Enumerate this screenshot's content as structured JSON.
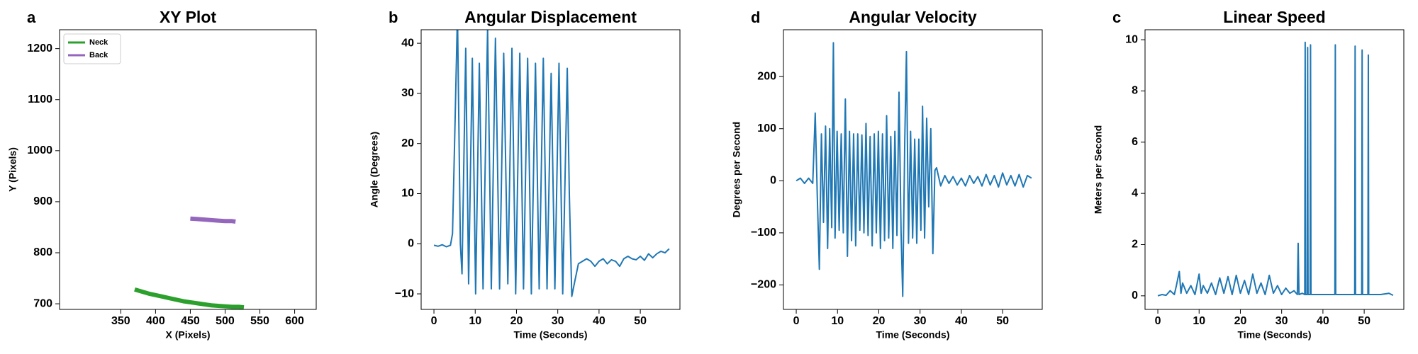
{
  "chart_data": [
    {
      "type": "line",
      "panel_label": "a",
      "title": "XY Plot",
      "xlabel": "X (Pixels)",
      "ylabel": "Y (Pixels)",
      "xlim": [
        262,
        631
      ],
      "ylim": [
        689,
        1237
      ],
      "xticks": [
        350,
        400,
        450,
        500,
        550,
        600
      ],
      "yticks": [
        700,
        800,
        900,
        1000,
        1100,
        1200
      ],
      "legend": "upper left",
      "line_width": 6,
      "series": [
        {
          "name": "Neck",
          "color": "#2ca02c",
          "x": [
            370,
            380,
            390,
            400,
            410,
            420,
            430,
            440,
            450,
            460,
            470,
            480,
            490,
            500,
            510,
            520,
            527
          ],
          "values": [
            728,
            724,
            720,
            717,
            714,
            711,
            708,
            705,
            703,
            701,
            699,
            697,
            696,
            695,
            694,
            694,
            693
          ]
        },
        {
          "name": "Back",
          "color": "#9467bd",
          "x": [
            450,
            460,
            470,
            480,
            490,
            500,
            510,
            515
          ],
          "values": [
            867,
            866,
            865,
            864,
            863,
            862,
            862,
            861
          ]
        }
      ]
    },
    {
      "type": "line",
      "panel_label": "b",
      "title": "Angular Displacement",
      "xlabel": "Time (Seconds)",
      "ylabel": "Angle (Degrees)",
      "xlim": [
        -3.1,
        59.6
      ],
      "ylim": [
        -13.1,
        42.7
      ],
      "xticks": [
        0,
        10,
        20,
        30,
        40,
        50
      ],
      "yticks": [
        {
          "value": -10,
          "label": "−10"
        },
        0,
        10,
        20,
        30,
        40
      ],
      "line_width": 2,
      "series": [
        {
          "color": "#1f77b4",
          "x": [
            0,
            1,
            2,
            3,
            4,
            4.5,
            5.0,
            5.7,
            6.4,
            6.8,
            7.7,
            8.4,
            9.3,
            10.1,
            11.0,
            11.9,
            13.0,
            13.9,
            14.9,
            15.9,
            16.9,
            17.9,
            18.9,
            19.8,
            20.8,
            21.7,
            22.7,
            23.6,
            24.6,
            25.5,
            26.5,
            27.4,
            28.4,
            29.3,
            30.3,
            31.2,
            32.3,
            32.8,
            33.4,
            34.0,
            35,
            36,
            37,
            38,
            39,
            40,
            41,
            42,
            43,
            44,
            45,
            46,
            47,
            48,
            49,
            50,
            51,
            52,
            53,
            54,
            55,
            56,
            57
          ],
          "values": [
            -0.3,
            -0.5,
            -0.2,
            -0.6,
            -0.3,
            2,
            20,
            46,
            0,
            -6,
            39,
            -8,
            37,
            -10,
            36,
            -9,
            43,
            -9,
            41,
            -9,
            38,
            -8,
            39,
            -10,
            38,
            -9,
            37,
            -10,
            36,
            -9,
            37,
            -9,
            34,
            -9,
            36,
            -10,
            35,
            10,
            -10.5,
            -8,
            -4,
            -3.5,
            -3,
            -3.5,
            -4.5,
            -3.5,
            -3,
            -4,
            -3.2,
            -3.5,
            -4.5,
            -3,
            -2.5,
            -3,
            -3.2,
            -2.5,
            -3.3,
            -2,
            -2.8,
            -2,
            -1.5,
            -1.8,
            -1
          ]
        }
      ]
    },
    {
      "type": "line",
      "panel_label": "d",
      "title": "Angular Velocity",
      "xlabel": "Time (Seconds)",
      "ylabel": "Degrees per Second",
      "xlim": [
        -3.1,
        59.6
      ],
      "ylim": [
        -247,
        290
      ],
      "xticks": [
        0,
        10,
        20,
        30,
        40,
        50
      ],
      "yticks": [
        {
          "value": -200,
          "label": "−200"
        },
        {
          "value": -100,
          "label": "−100"
        },
        0,
        100,
        200
      ],
      "line_width": 2,
      "series": [
        {
          "color": "#1f77b4",
          "x": [
            0,
            1,
            2,
            3,
            4,
            4.6,
            5.1,
            5.6,
            6.1,
            6.6,
            7.1,
            7.6,
            8.1,
            8.6,
            9.0,
            9.4,
            9.9,
            10.4,
            10.9,
            11.4,
            11.9,
            12.4,
            12.9,
            13.4,
            13.9,
            14.4,
            14.9,
            15.4,
            15.9,
            16.4,
            16.9,
            17.4,
            17.9,
            18.4,
            18.9,
            19.4,
            19.9,
            20.4,
            20.9,
            21.4,
            21.9,
            22.4,
            22.9,
            23.4,
            23.9,
            24.4,
            24.9,
            25.4,
            25.8,
            26.3,
            26.7,
            27.2,
            27.7,
            28.2,
            28.7,
            29.2,
            29.7,
            30.2,
            30.6,
            31.1,
            31.6,
            32.1,
            32.6,
            33.1,
            33.6,
            34,
            35,
            36,
            37,
            38,
            39,
            40,
            41,
            42,
            43,
            44,
            45,
            46,
            47,
            48,
            49,
            50,
            51,
            52,
            53,
            54,
            55,
            56,
            57
          ],
          "values": [
            0,
            5,
            -5,
            5,
            -5,
            130,
            -30,
            -170,
            90,
            -80,
            105,
            -130,
            100,
            -90,
            265,
            -110,
            95,
            -95,
            90,
            -100,
            157,
            -145,
            95,
            -115,
            90,
            -125,
            90,
            -95,
            88,
            -100,
            110,
            -105,
            85,
            -125,
            90,
            -100,
            95,
            -130,
            90,
            -115,
            125,
            -110,
            85,
            -130,
            95,
            -105,
            170,
            -100,
            -222,
            80,
            248,
            -120,
            95,
            -110,
            80,
            -120,
            80,
            -95,
            143,
            -110,
            120,
            -50,
            100,
            -140,
            20,
            25,
            -10,
            10,
            -5,
            8,
            -8,
            5,
            -10,
            10,
            -5,
            8,
            -10,
            12,
            -8,
            10,
            -12,
            15,
            -8,
            10,
            -10,
            12,
            -12,
            10,
            5
          ]
        }
      ]
    },
    {
      "type": "line",
      "panel_label": "c",
      "title": "Linear Speed",
      "xlabel": "Time (Seconds)",
      "ylabel": "Meters per Second",
      "xlim": [
        -3.1,
        59.6
      ],
      "ylim": [
        -0.53,
        10.39
      ],
      "xticks": [
        0,
        10,
        20,
        30,
        40,
        50
      ],
      "yticks": [
        0,
        2,
        4,
        6,
        8,
        10
      ],
      "line_width": 2,
      "series": [
        {
          "color": "#1f77b4",
          "x": [
            0,
            1,
            2,
            3,
            4,
            4.5,
            5.2,
            5.6,
            6,
            7,
            8,
            9,
            10,
            10.5,
            11,
            12,
            13,
            14,
            15,
            16,
            17,
            18,
            19,
            20,
            21,
            22,
            23,
            24,
            25,
            26,
            27,
            28,
            29,
            30,
            31,
            32,
            33,
            33.8,
            34,
            34.2,
            35,
            35.6,
            35.7,
            35.8,
            36.2,
            36.3,
            36.4,
            36.9,
            37,
            37.1,
            40,
            42.9,
            43,
            43.1,
            45,
            47.7,
            47.8,
            47.9,
            49.4,
            49.5,
            49.6,
            50.9,
            51,
            51.1,
            54,
            56,
            57
          ],
          "values": [
            0,
            0.05,
            0.02,
            0.2,
            0.05,
            0.4,
            0.95,
            0.1,
            0.5,
            0.1,
            0.4,
            0.05,
            0.85,
            0.1,
            0.4,
            0.1,
            0.5,
            0.05,
            0.7,
            0.1,
            0.75,
            0.05,
            0.8,
            0.1,
            0.6,
            0.05,
            0.85,
            0.1,
            0.5,
            0.05,
            0.8,
            0.1,
            0.4,
            0.05,
            0.3,
            0.1,
            0.2,
            0.05,
            2.05,
            0.05,
            0.1,
            0.05,
            9.9,
            0.05,
            0.05,
            9.7,
            0.05,
            0.05,
            9.8,
            0.05,
            0.05,
            0.05,
            9.8,
            0.05,
            0.05,
            0.05,
            9.75,
            0.05,
            0.05,
            9.6,
            0.05,
            0.05,
            9.4,
            0.05,
            0.05,
            0.1,
            0.02
          ]
        }
      ]
    }
  ]
}
